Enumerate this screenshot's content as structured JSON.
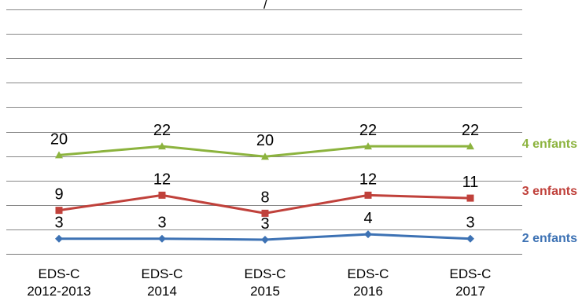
{
  "chart_data": {
    "type": "line",
    "categories": [
      [
        "EDS-C",
        "2012-2013"
      ],
      [
        "EDS-C",
        "2014"
      ],
      [
        "EDS-C",
        "2015"
      ],
      [
        "EDS-C",
        "2016"
      ],
      [
        "EDS-C",
        "2017"
      ]
    ],
    "series": [
      {
        "name": "4 enfants",
        "color": "#8CB33E",
        "marker": "triangle",
        "values": [
          20,
          22,
          20,
          22,
          22
        ],
        "plot_values": [
          20.2,
          22.0,
          19.9,
          22.0,
          22.0
        ]
      },
      {
        "name": "3 enfants",
        "color": "#C0413B",
        "marker": "square",
        "values": [
          9,
          12,
          8,
          12,
          11
        ],
        "plot_values": [
          8.9,
          12.0,
          8.3,
          12.0,
          11.4
        ]
      },
      {
        "name": "2 enfants",
        "color": "#3D72B4",
        "marker": "diamond",
        "values": [
          3,
          3,
          3,
          4,
          3
        ],
        "plot_values": [
          3.1,
          3.1,
          2.9,
          4.0,
          3.1
        ]
      }
    ],
    "ylim": [
      0,
      50
    ],
    "gridlines": [
      5,
      10,
      15,
      20,
      25,
      30,
      35,
      40,
      45,
      50
    ],
    "grid": true,
    "legend": "right-end-labels",
    "title_partial": "/"
  }
}
